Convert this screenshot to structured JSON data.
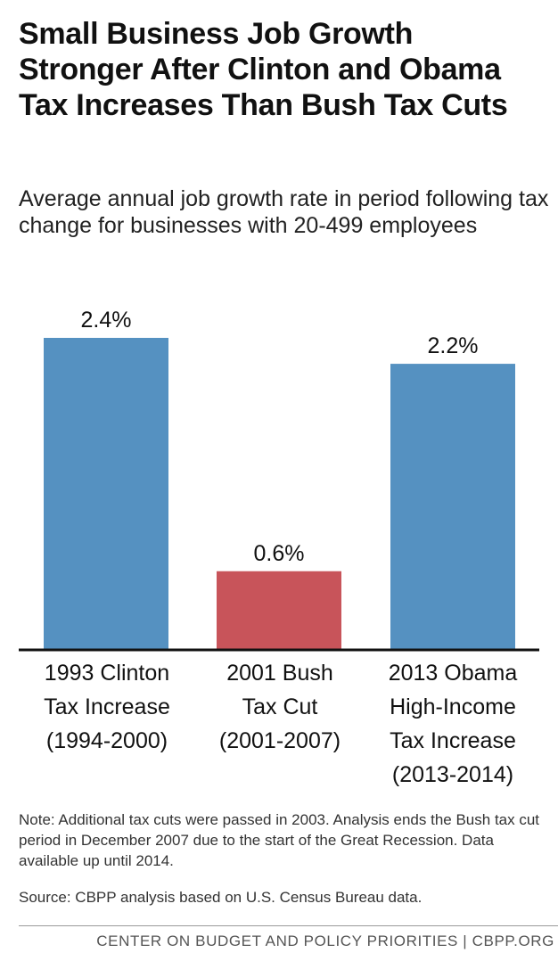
{
  "colors": {
    "increase_bar": "#5591c1",
    "cut_bar": "#c8545a",
    "axis": "#111111"
  },
  "chart_data": {
    "type": "bar",
    "title": "Small Business Job Growth Stronger After Clinton and Obama Tax Increases Than Bush Tax Cuts",
    "subtitle": "Average annual job growth rate in period following tax change for businesses with 20-499 employees",
    "xlabel": "",
    "ylabel": "",
    "ylim": [
      0,
      2.4
    ],
    "unit": "%",
    "categories": [
      "1993 Clinton\nTax Increase\n(1994-2000)",
      "2001 Bush\nTax Cut\n(2001-2007)",
      "2013 Obama\nHigh-Income\nTax Increase\n(2013-2014)"
    ],
    "values": [
      2.4,
      0.6,
      2.2
    ],
    "data_labels": [
      "2.4%",
      "0.6%",
      "2.2%"
    ],
    "bar_colors": [
      "#5591c1",
      "#c8545a",
      "#5591c1"
    ],
    "grid": false,
    "legend": "none"
  },
  "note": "Note: Additional tax cuts were passed in 2003. Analysis ends the Bush tax cut period in December 2007 due to the start of the Great Recession. Data available up until 2014.",
  "source": "Source: CBPP analysis based on U.S. Census Bureau data.",
  "footer": "CENTER ON BUDGET AND POLICY PRIORITIES | CBPP.ORG"
}
